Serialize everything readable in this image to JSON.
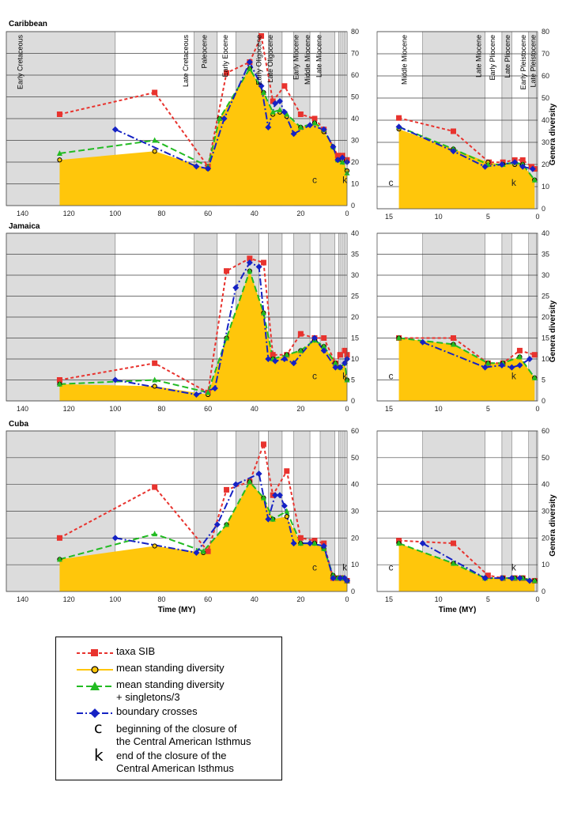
{
  "chart_data": [
    {
      "type": "line",
      "title": "Caribbean",
      "xlabel": "",
      "ylabel": "",
      "xlim": [
        147,
        0
      ],
      "ylim": [
        0,
        80
      ],
      "xticks": [
        140,
        120,
        100,
        80,
        60,
        40,
        20,
        0
      ],
      "yticks": [
        0,
        10,
        20,
        30,
        40,
        50,
        60,
        70,
        80
      ],
      "period_bands": [
        [
          147,
          100
        ],
        [
          66,
          56
        ],
        [
          48,
          38
        ],
        [
          34,
          28
        ],
        [
          23,
          16
        ],
        [
          11.6,
          5.3
        ],
        [
          3.6,
          2.6
        ],
        [
          1.8,
          0.8
        ]
      ],
      "period_labels": [
        "Early Cretaceous",
        "Late Cretaceous",
        "Paleocene",
        "Early Eocene",
        "Early Oligocene",
        "Late Oligocene",
        "Early Miocene",
        "Middle Miocene",
        "Late Miocene"
      ],
      "markers": [
        {
          "text": "c",
          "x": 14
        },
        {
          "text": "k",
          "x": 1
        }
      ],
      "series": [
        {
          "name": "taxa SIB",
          "x": [
            124,
            83,
            60,
            52,
            42,
            37,
            32,
            27,
            20,
            14,
            10,
            4,
            2,
            0
          ],
          "y": [
            42,
            52,
            18,
            61,
            66,
            78,
            48,
            55,
            42,
            40,
            35,
            23,
            23,
            21
          ]
        },
        {
          "name": "mean standing diversity",
          "x": [
            124,
            83,
            60,
            55,
            42,
            36,
            32,
            29,
            26,
            20,
            14,
            10,
            6,
            4,
            2,
            0
          ],
          "y": [
            21,
            25,
            17,
            40,
            63,
            52,
            42,
            43,
            41,
            36,
            38,
            34,
            27,
            21,
            21,
            16
          ]
        },
        {
          "name": "mean standing diversity + singletons/3",
          "x": [
            124,
            83,
            60,
            55,
            42,
            36,
            32,
            29,
            26,
            20,
            14,
            10,
            6,
            4,
            2,
            0
          ],
          "y": [
            24,
            30,
            18,
            40,
            63,
            52,
            43,
            44,
            42,
            36,
            38,
            35,
            27,
            21,
            20,
            15
          ]
        },
        {
          "name": "boundary crosses",
          "x": [
            100,
            65,
            60,
            53,
            42,
            37,
            34,
            31,
            29,
            27,
            23,
            16,
            10,
            6,
            4,
            2,
            0
          ],
          "y": [
            35,
            18,
            17,
            40,
            66,
            55,
            36,
            47,
            48,
            43,
            33,
            37,
            35,
            27,
            21,
            22,
            20
          ]
        }
      ]
    },
    {
      "type": "line",
      "title": "",
      "xlabel": "",
      "ylabel": "Genera diversity",
      "xlim": [
        16.2,
        0
      ],
      "ylim": [
        0,
        80
      ],
      "xticks": [
        15,
        10,
        5,
        0
      ],
      "yticks": [
        0,
        10,
        20,
        30,
        40,
        50,
        60,
        70,
        80
      ],
      "period_bands": [
        [
          11.6,
          5.3
        ],
        [
          3.6,
          2.6
        ],
        [
          0.9,
          0.1
        ]
      ],
      "period_labels": [
        "Middle Miocene",
        "Late Miocene",
        "Early Pliocene",
        "Late Pliocene",
        "Early Pleistocene",
        "Late Pleistocene"
      ],
      "markers": [
        {
          "text": "c",
          "x": 14.8
        },
        {
          "text": "k",
          "x": 2.4
        }
      ],
      "series": [
        {
          "name": "taxa SIB",
          "x": [
            14,
            8.5,
            4.9,
            3.5,
            2.3,
            1.5,
            0.6,
            0.3
          ],
          "y": [
            41,
            35,
            21,
            21,
            22,
            22,
            19,
            18
          ]
        },
        {
          "name": "mean standing diversity",
          "x": [
            14,
            8.5,
            5,
            3.5,
            2.3,
            1.5,
            0.3
          ],
          "y": [
            36,
            27,
            21,
            20,
            20,
            20,
            13
          ]
        },
        {
          "name": "mean standing diversity + singletons/3",
          "x": [
            14,
            8.5,
            5,
            3.5,
            2.3,
            1.5,
            0.3
          ],
          "y": [
            37,
            27,
            20,
            20,
            21,
            20,
            13
          ]
        },
        {
          "name": "boundary crosses",
          "x": [
            14,
            8.5,
            5.3,
            3.6,
            2.3,
            1.5,
            0.5
          ],
          "y": [
            37,
            26,
            19,
            20,
            21,
            19,
            18
          ]
        }
      ]
    },
    {
      "type": "line",
      "title": "Jamaica",
      "xlabel": "",
      "ylabel": "",
      "xlim": [
        147,
        0
      ],
      "ylim": [
        0,
        40
      ],
      "xticks": [
        140,
        120,
        100,
        80,
        60,
        40,
        20,
        0
      ],
      "yticks": [
        0,
        5,
        10,
        15,
        20,
        25,
        30,
        35,
        40
      ],
      "period_bands": [
        [
          147,
          100
        ],
        [
          66,
          56
        ],
        [
          48,
          38
        ],
        [
          34,
          28
        ],
        [
          23,
          16
        ],
        [
          11.6,
          5.3
        ],
        [
          3.6,
          2.6
        ],
        [
          1.8,
          0.8
        ]
      ],
      "period_labels": [],
      "markers": [
        {
          "text": "c",
          "x": 14
        },
        {
          "text": "k",
          "x": 1
        }
      ],
      "series": [
        {
          "name": "taxa SIB",
          "x": [
            124,
            83,
            60,
            52,
            42,
            36,
            32,
            26,
            20,
            14,
            10,
            5,
            3,
            1,
            0
          ],
          "y": [
            5,
            9,
            2,
            31,
            34,
            33,
            11,
            11,
            16,
            15,
            15,
            9,
            11,
            12,
            11
          ]
        },
        {
          "name": "mean standing diversity",
          "x": [
            124,
            83,
            60,
            52,
            42,
            36,
            32,
            26,
            20,
            14,
            10,
            5,
            3,
            1,
            0
          ],
          "y": [
            4,
            3.5,
            1.5,
            15,
            31,
            21,
            10,
            11,
            12,
            14.5,
            13,
            9,
            8,
            9,
            5
          ]
        },
        {
          "name": "mean standing diversity + singletons/3",
          "x": [
            124,
            83,
            60,
            52,
            42,
            36,
            32,
            26,
            20,
            14,
            10,
            5,
            3,
            1,
            0
          ],
          "y": [
            4,
            5,
            2,
            15,
            31,
            21,
            10,
            11,
            12,
            14.5,
            13,
            9,
            8,
            9,
            5
          ]
        },
        {
          "name": "boundary crosses",
          "x": [
            100,
            65,
            57,
            48,
            42,
            38,
            34,
            31,
            27,
            23,
            14,
            10,
            5,
            3,
            1,
            0
          ],
          "y": [
            5,
            1.5,
            3,
            27,
            33,
            32,
            10,
            9.5,
            10,
            9,
            15,
            12,
            8,
            8,
            9,
            10
          ]
        }
      ]
    },
    {
      "type": "line",
      "title": "",
      "xlabel": "",
      "ylabel": "Genera diversity",
      "xlim": [
        16.2,
        0
      ],
      "ylim": [
        0,
        40
      ],
      "xticks": [
        15,
        10,
        5,
        0
      ],
      "yticks": [
        0,
        5,
        10,
        15,
        20,
        25,
        30,
        35,
        40
      ],
      "period_bands": [
        [
          11.6,
          5.3
        ],
        [
          3.6,
          2.6
        ],
        [
          0.9,
          0.1
        ]
      ],
      "period_labels": [],
      "markers": [
        {
          "text": "c",
          "x": 14.8
        },
        {
          "text": "k",
          "x": 2.4
        }
      ],
      "series": [
        {
          "name": "taxa SIB",
          "x": [
            14,
            8.5,
            5,
            3.5,
            1.8,
            0.3
          ],
          "y": [
            15,
            15,
            9,
            9,
            12,
            11
          ]
        },
        {
          "name": "mean standing diversity",
          "x": [
            14,
            8.5,
            5,
            3.5,
            1.8,
            0.3
          ],
          "y": [
            15,
            13.5,
            9,
            9,
            10.5,
            5.5
          ]
        },
        {
          "name": "mean standing diversity + singletons/3",
          "x": [
            14,
            8.5,
            5,
            3.5,
            1.8,
            0.3
          ],
          "y": [
            15,
            13.5,
            9,
            9,
            10.5,
            5.5
          ]
        },
        {
          "name": "boundary crosses",
          "x": [
            11.6,
            5.3,
            3.6,
            2.6,
            1.8,
            0.8
          ],
          "y": [
            14,
            8,
            8.5,
            8,
            8.5,
            10
          ]
        }
      ]
    },
    {
      "type": "line",
      "title": "Cuba",
      "xlabel": "Time (MY)",
      "ylabel": "",
      "xlim": [
        147,
        0
      ],
      "ylim": [
        0,
        60
      ],
      "xticks": [
        140,
        120,
        100,
        80,
        60,
        40,
        20,
        0
      ],
      "yticks": [
        0,
        10,
        20,
        30,
        40,
        50,
        60
      ],
      "period_bands": [
        [
          147,
          100
        ],
        [
          66,
          56
        ],
        [
          48,
          38
        ],
        [
          34,
          28
        ],
        [
          23,
          16
        ],
        [
          11.6,
          5.3
        ],
        [
          3.6,
          2.6
        ],
        [
          1.8,
          0.8
        ]
      ],
      "period_labels": [],
      "markers": [
        {
          "text": "c",
          "x": 14
        },
        {
          "text": "k",
          "x": 1
        }
      ],
      "series": [
        {
          "name": "taxa SIB",
          "x": [
            124,
            83,
            60,
            52,
            42,
            36,
            32,
            26,
            20,
            14,
            10,
            6,
            4,
            2,
            0
          ],
          "y": [
            20,
            39,
            15,
            38,
            41,
            55,
            36,
            45,
            20,
            19,
            18,
            5,
            5,
            5,
            4
          ]
        },
        {
          "name": "mean standing diversity",
          "x": [
            124,
            83,
            62,
            52,
            42,
            36,
            32,
            26,
            20,
            14,
            10,
            6,
            4,
            2,
            0
          ],
          "y": [
            12,
            17,
            14.5,
            25,
            41,
            35,
            27,
            28,
            18,
            18,
            16,
            6,
            5,
            5,
            4
          ]
        },
        {
          "name": "mean standing diversity + singletons/3",
          "x": [
            124,
            83,
            62,
            52,
            42,
            36,
            32,
            26,
            20,
            14,
            10,
            6,
            4,
            2,
            0
          ],
          "y": [
            12,
            21.5,
            15,
            25,
            41,
            35,
            27,
            30,
            18,
            18,
            16,
            6,
            5,
            5,
            4
          ]
        },
        {
          "name": "boundary crosses",
          "x": [
            100,
            65,
            56,
            48,
            38,
            34,
            31,
            29,
            27,
            23,
            16,
            10,
            6,
            3,
            1,
            0
          ],
          "y": [
            20,
            14.5,
            25,
            40,
            44,
            27,
            36,
            36,
            32,
            18,
            18,
            17,
            5,
            5,
            5,
            4
          ]
        }
      ]
    },
    {
      "type": "line",
      "title": "",
      "xlabel": "Time (MY)",
      "ylabel": "Genera diversity",
      "xlim": [
        16.2,
        0
      ],
      "ylim": [
        0,
        60
      ],
      "xticks": [
        15,
        10,
        5,
        0
      ],
      "yticks": [
        0,
        10,
        20,
        30,
        40,
        50,
        60
      ],
      "period_bands": [
        [
          11.6,
          5.3
        ],
        [
          3.6,
          2.6
        ],
        [
          0.9,
          0.1
        ]
      ],
      "period_labels": [],
      "markers": [
        {
          "text": "c",
          "x": 14.8
        },
        {
          "text": "k",
          "x": 2.4
        }
      ],
      "series": [
        {
          "name": "taxa SIB",
          "x": [
            14,
            8.5,
            5,
            3.5,
            2.3,
            1.5,
            0.3
          ],
          "y": [
            19,
            18,
            6,
            5,
            5,
            5,
            4
          ]
        },
        {
          "name": "mean standing diversity",
          "x": [
            14,
            8.5,
            5.3,
            3.5,
            2.3,
            1.5,
            0.3
          ],
          "y": [
            18,
            10.5,
            5,
            5,
            5,
            5,
            4
          ]
        },
        {
          "name": "mean standing diversity + singletons/3",
          "x": [
            14,
            8.5,
            5.3,
            3.5,
            2.3,
            1.5,
            0.3
          ],
          "y": [
            18,
            10.5,
            5,
            5,
            5,
            5,
            4
          ]
        },
        {
          "name": "boundary crosses",
          "x": [
            11.6,
            5.3,
            3.6,
            2.6,
            1.8,
            0.8
          ],
          "y": [
            18,
            5,
            5,
            5,
            5,
            4
          ]
        }
      ]
    }
  ],
  "style": {
    "colors": {
      "taxa": "#e8332e",
      "mean": "#ffc60b",
      "meanStroke": "#000000",
      "singletons": "#22bb22",
      "boundary": "#1522c4",
      "band": "#dcdcdc"
    }
  },
  "legend": {
    "items": [
      {
        "label": "taxa SIB"
      },
      {
        "label": "mean standing diversity"
      },
      {
        "label_line1": "mean standing diversity",
        "label_line2": "+ singletons/3"
      },
      {
        "label": "boundary crosses"
      }
    ],
    "c_letter": "c",
    "c_line1": "beginning of the closure of",
    "c_line2": "the Central American Isthmus",
    "k_letter": "k",
    "k_line1": "end of the closure of the",
    "k_line2": "Central American Isthmus"
  }
}
